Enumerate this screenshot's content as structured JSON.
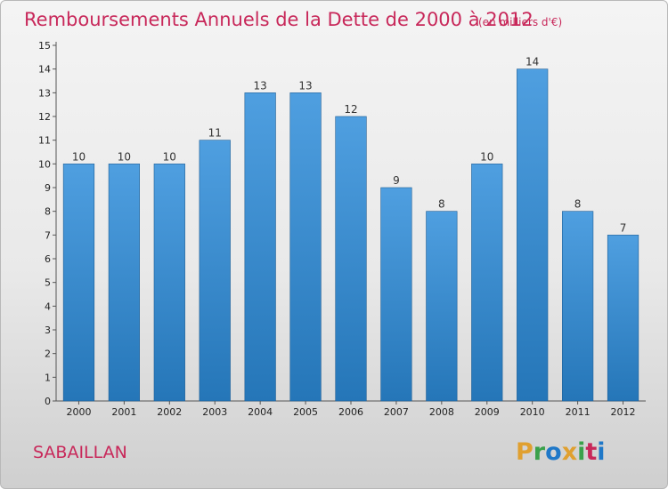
{
  "chart_data": {
    "type": "bar",
    "title": "Remboursements Annuels de la Dette de 2000 à 2012",
    "unit": "(en milliers d'€)",
    "categories": [
      "2000",
      "2001",
      "2002",
      "2003",
      "2004",
      "2005",
      "2006",
      "2007",
      "2008",
      "2009",
      "2010",
      "2011",
      "2012"
    ],
    "values": [
      10,
      10,
      10,
      11,
      13,
      13,
      12,
      9,
      8,
      10,
      14,
      8,
      7
    ],
    "ylim": [
      0,
      15
    ],
    "yticks": [
      0,
      1,
      2,
      3,
      4,
      5,
      6,
      7,
      8,
      9,
      10,
      11,
      12,
      13,
      14,
      15
    ],
    "grid": false,
    "bar_color": "#4f9fe0",
    "bar_color_dark": "#2576b8"
  },
  "commune": "SABAILLAN",
  "brand": {
    "letters": [
      {
        "ch": "P",
        "color": "#e0a030"
      },
      {
        "ch": "r",
        "color": "#3aa14a"
      },
      {
        "ch": "o",
        "color": "#1f78c8"
      },
      {
        "ch": "x",
        "color": "#e0a030"
      },
      {
        "ch": "i",
        "color": "#3aa14a"
      },
      {
        "ch": "t",
        "color": "#c8285a"
      },
      {
        "ch": "i",
        "color": "#1f78c8"
      }
    ]
  }
}
